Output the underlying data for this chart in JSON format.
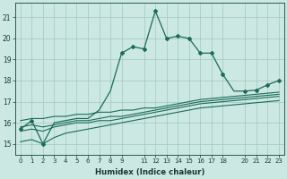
{
  "xlabel": "Humidex (Indice chaleur)",
  "bg_color": "#cce8e2",
  "grid_color": "#a0c8c0",
  "line_color": "#1a6b5a",
  "xlim": [
    -0.5,
    23.5
  ],
  "ylim": [
    14.5,
    21.7
  ],
  "xtick_pos": [
    0,
    1,
    2,
    3,
    4,
    5,
    6,
    7,
    8,
    9,
    11,
    12,
    13,
    14,
    15,
    16,
    17,
    18,
    20,
    21,
    22,
    23
  ],
  "xtick_lab": [
    "0",
    "1",
    "2",
    "3",
    "4",
    "5",
    "6",
    "7",
    "8",
    "9",
    "11",
    "12",
    "13",
    "14",
    "15",
    "16",
    "17",
    "18",
    "20",
    "21",
    "22",
    "23"
  ],
  "ytick_pos": [
    15,
    16,
    17,
    18,
    19,
    20,
    21
  ],
  "ytick_lab": [
    "15",
    "16",
    "17",
    "18",
    "19",
    "20",
    "21"
  ],
  "main_x": [
    0,
    1,
    2,
    3,
    4,
    5,
    6,
    7,
    8,
    9,
    10,
    11,
    12,
    13,
    14,
    15,
    16,
    17,
    18,
    19,
    20,
    21,
    22,
    23
  ],
  "main_y": [
    15.7,
    16.1,
    15.0,
    16.0,
    16.1,
    16.2,
    16.2,
    16.6,
    17.5,
    19.3,
    19.6,
    19.5,
    21.3,
    20.0,
    20.1,
    20.0,
    19.3,
    19.3,
    18.3,
    17.5,
    17.5,
    17.55,
    17.8,
    18.0
  ],
  "main_markers": [
    0,
    1,
    2,
    9,
    10,
    11,
    12,
    13,
    14,
    15,
    16,
    17,
    18,
    20,
    21,
    22,
    23
  ],
  "flat_lines": [
    {
      "x": [
        0,
        1,
        2,
        3,
        4,
        5,
        6,
        7,
        8,
        9,
        10,
        11,
        12,
        13,
        14,
        15,
        16,
        17,
        18,
        19,
        20,
        21,
        22,
        23
      ],
      "y": [
        16.1,
        16.2,
        16.2,
        16.3,
        16.3,
        16.4,
        16.4,
        16.5,
        16.5,
        16.6,
        16.6,
        16.7,
        16.7,
        16.8,
        16.9,
        17.0,
        17.1,
        17.15,
        17.2,
        17.25,
        17.3,
        17.35,
        17.4,
        17.45
      ]
    },
    {
      "x": [
        0,
        1,
        2,
        3,
        4,
        5,
        6,
        7,
        8,
        9,
        10,
        11,
        12,
        13,
        14,
        15,
        16,
        17,
        18,
        19,
        20,
        21,
        22,
        23
      ],
      "y": [
        15.8,
        15.9,
        15.8,
        15.9,
        16.0,
        16.1,
        16.1,
        16.2,
        16.3,
        16.3,
        16.4,
        16.5,
        16.6,
        16.7,
        16.8,
        16.9,
        17.0,
        17.05,
        17.1,
        17.15,
        17.2,
        17.25,
        17.3,
        17.35
      ]
    },
    {
      "x": [
        0,
        1,
        2,
        3,
        4,
        5,
        6,
        7,
        8,
        9,
        10,
        11,
        12,
        13,
        14,
        15,
        16,
        17,
        18,
        19,
        20,
        21,
        22,
        23
      ],
      "y": [
        15.6,
        15.7,
        15.6,
        15.8,
        15.9,
        16.0,
        16.0,
        16.1,
        16.1,
        16.2,
        16.3,
        16.4,
        16.5,
        16.6,
        16.7,
        16.8,
        16.9,
        16.95,
        17.0,
        17.05,
        17.1,
        17.15,
        17.2,
        17.25
      ]
    },
    {
      "x": [
        0,
        1,
        2,
        3,
        4,
        5,
        6,
        7,
        8,
        9,
        10,
        11,
        12,
        13,
        14,
        15,
        16,
        17,
        18,
        19,
        20,
        21,
        22,
        23
      ],
      "y": [
        15.1,
        15.2,
        15.0,
        15.3,
        15.5,
        15.6,
        15.7,
        15.8,
        15.9,
        16.0,
        16.1,
        16.2,
        16.3,
        16.4,
        16.5,
        16.6,
        16.7,
        16.75,
        16.8,
        16.85,
        16.9,
        16.95,
        17.0,
        17.05
      ]
    }
  ],
  "flat_markers": {
    "line0": [
      2,
      3,
      4,
      5,
      6,
      7
    ],
    "line1": [
      2,
      3,
      4,
      5,
      6,
      7
    ],
    "line2": [
      2,
      3,
      4,
      5,
      6,
      7
    ],
    "line3": [
      1,
      2,
      3,
      4,
      5,
      6,
      7
    ]
  }
}
